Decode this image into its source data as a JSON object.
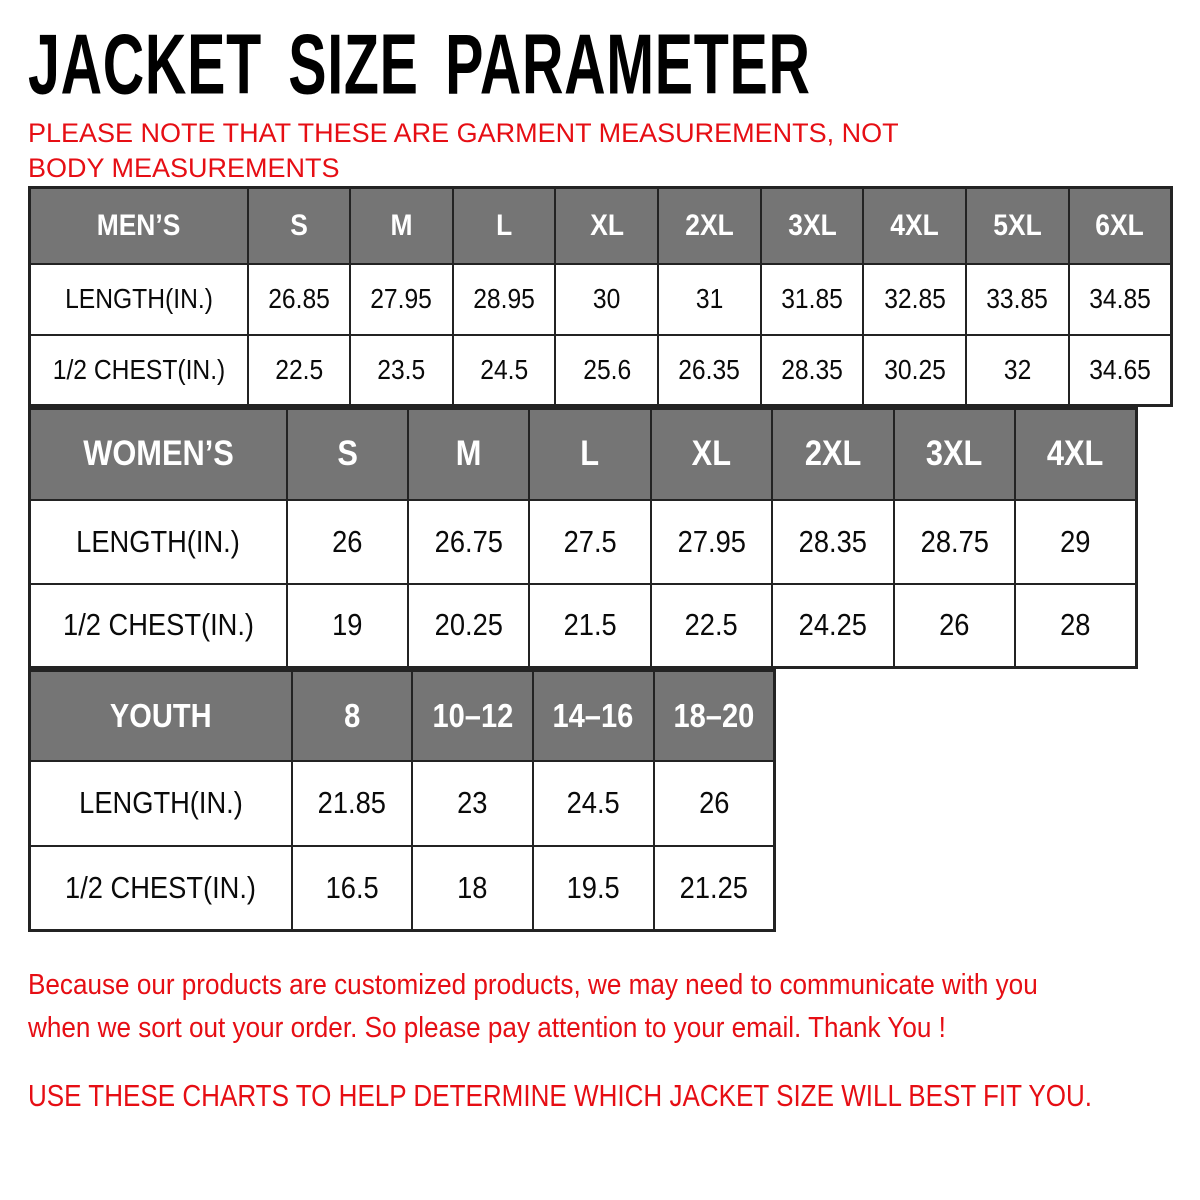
{
  "page": {
    "title": "JACKET SIZE PARAMETER",
    "note": "PLEASE NOTE THAT THESE ARE GARMENT MEASUREMENTS, NOT BODY MEASUREMENTS",
    "colors": {
      "accent_red": "#e60e14",
      "header_gray": "#757575",
      "table_border": "#232323",
      "text_black": "#000000"
    }
  },
  "tables": [
    {
      "id": "mens",
      "header": [
        "MEN’S",
        "S",
        "M",
        "L",
        "XL",
        "2XL",
        "3XL",
        "4XL",
        "5XL",
        "6XL"
      ],
      "rows": [
        {
          "label": "LENGTH(IN.)",
          "values": [
            "26.85",
            "27.95",
            "28.95",
            "30",
            "31",
            "31.85",
            "32.85",
            "33.85",
            "34.85"
          ]
        },
        {
          "label": "1/2 CHEST(IN.)",
          "values": [
            "22.5",
            "23.5",
            "24.5",
            "25.6",
            "26.35",
            "28.35",
            "30.25",
            "32",
            "34.65"
          ]
        }
      ]
    },
    {
      "id": "womens",
      "header": [
        "WOMEN’S",
        "S",
        "M",
        "L",
        "XL",
        "2XL",
        "3XL",
        "4XL"
      ],
      "rows": [
        {
          "label": "LENGTH(IN.)",
          "values": [
            "26",
            "26.75",
            "27.5",
            "27.95",
            "28.35",
            "28.75",
            "29"
          ]
        },
        {
          "label": "1/2 CHEST(IN.)",
          "values": [
            "19",
            "20.25",
            "21.5",
            "22.5",
            "24.25",
            "26",
            "28"
          ]
        }
      ]
    },
    {
      "id": "youth",
      "header": [
        "YOUTH",
        "8",
        "10–12",
        "14–16",
        "18–20"
      ],
      "rows": [
        {
          "label": "LENGTH(IN.)",
          "values": [
            "21.85",
            "23",
            "24.5",
            "26"
          ]
        },
        {
          "label": "1/2 CHEST(IN.)",
          "values": [
            "16.5",
            "18",
            "19.5",
            "21.25"
          ]
        }
      ]
    }
  ],
  "footer": {
    "line1": "Because our products are customized products, we may need to communicate with you",
    "line2": "when we sort out your order. So please pay attention to your email. Thank You !",
    "usage": "USE THESE CHARTS TO HELP DETERMINE WHICH JACKET SIZE WILL BEST FIT YOU."
  }
}
